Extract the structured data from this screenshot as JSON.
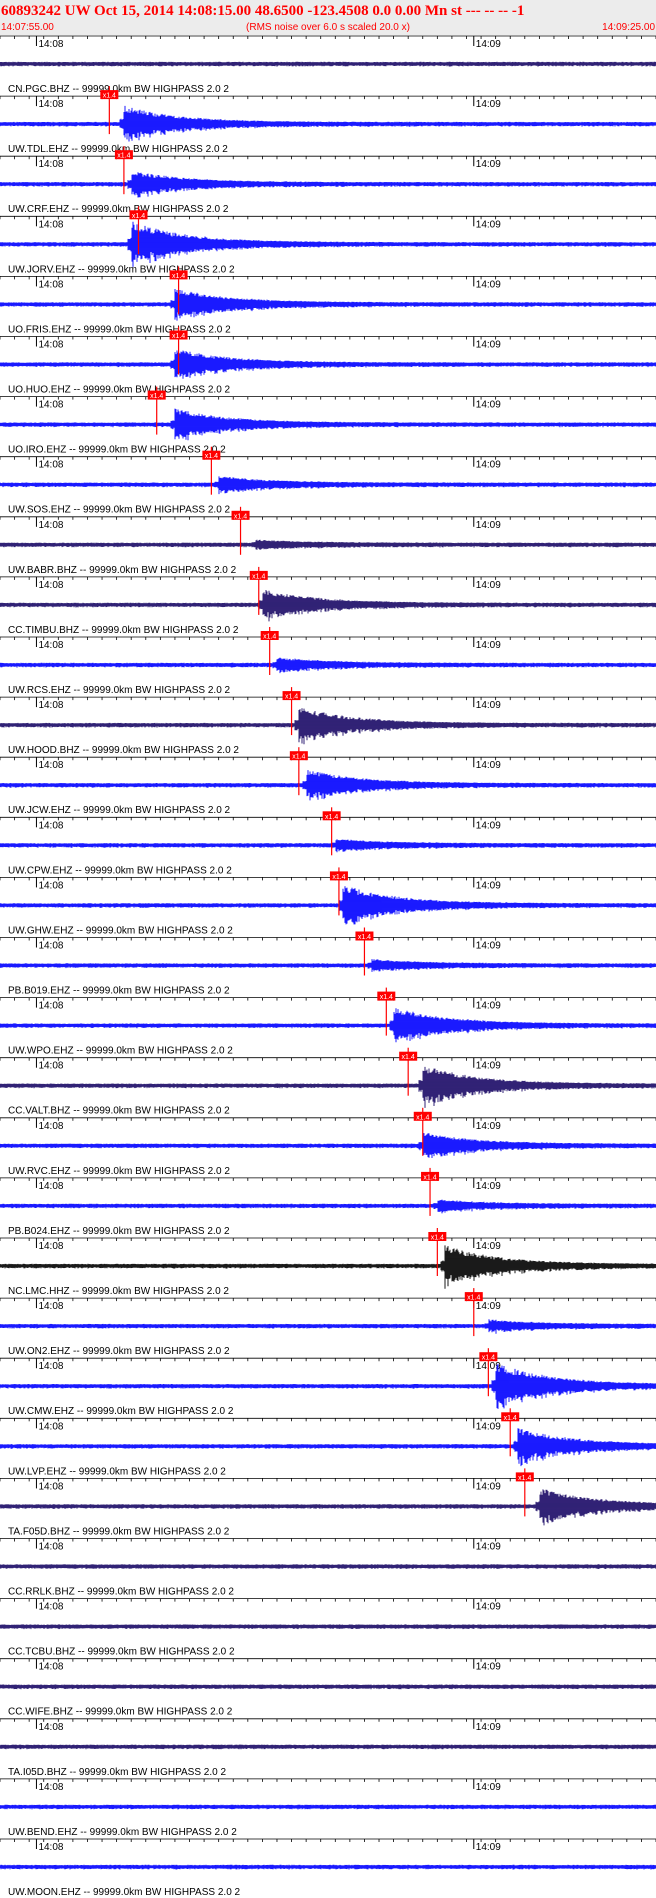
{
  "header": {
    "title": "60893242 UW Oct 15, 2014 14:08:15.00   48.6500 -123.4508  0.0 0.00 Mn st --- -- --   -1",
    "start_time": "14:07:55.00",
    "end_time": "14:09:25.00",
    "noise_note": "(RMS noise over 6.0 s scaled 20.0 x)"
  },
  "colors": {
    "title": "#ff0000",
    "trace_blue": "#0000ff",
    "trace_navy": "#1a0a66",
    "trace_black": "#000000",
    "pick": "#ff0000",
    "axis": "#000000"
  },
  "chart_data": {
    "type": "line",
    "x_unit": "time (UTC)",
    "x_range": [
      "14:07:55.00",
      "14:09:25.00"
    ],
    "minute_ticks": [
      "14:08",
      "14:09"
    ],
    "pick_label": "x1.4",
    "channels": [
      {
        "label": "CN.PGC.BHZ -- 99999.0km BW  HIGHPASS  2.0  2",
        "color": "navy",
        "pick": null,
        "event_time": null,
        "amplitude": 0.2
      },
      {
        "label": "UW.TDL.EHZ -- 99999.0km BW  HIGHPASS  2.0  2",
        "color": "blue",
        "pick": "14:08:10.0",
        "event_time": "14:08:12",
        "amplitude": 0.7
      },
      {
        "label": "UW.CRF.EHZ -- 99999.0km BW  HIGHPASS  2.0  2",
        "color": "blue",
        "pick": "14:08:12.0",
        "event_time": "14:08:13",
        "amplitude": 0.5
      },
      {
        "label": "UW.JORV.EHZ -- 99999.0km BW  HIGHPASS  2.0  2",
        "color": "blue",
        "pick": "14:08:14.0",
        "event_time": "14:08:13",
        "amplitude": 0.9
      },
      {
        "label": "UO.FRIS.EHZ -- 99999.0km BW  HIGHPASS  2.0  2",
        "color": "blue",
        "pick": "14:08:19.5",
        "event_time": "14:08:19",
        "amplitude": 0.6
      },
      {
        "label": "UO.HUO.EHZ -- 99999.0km BW  HIGHPASS  2.0  2",
        "color": "blue",
        "pick": "14:08:19.5",
        "event_time": "14:08:19",
        "amplitude": 0.6
      },
      {
        "label": "UO.IRO.EHZ -- 99999.0km BW  HIGHPASS  2.0  2",
        "color": "blue",
        "pick": "14:08:16.5",
        "event_time": "14:08:19",
        "amplitude": 0.6
      },
      {
        "label": "UW.SOS.EHZ -- 99999.0km BW  HIGHPASS  2.0  2",
        "color": "blue",
        "pick": "14:08:24.0",
        "event_time": "14:08:25",
        "amplitude": 0.3
      },
      {
        "label": "UW.BABR.BHZ -- 99999.0km BW  HIGHPASS  2.0  2",
        "color": "navy",
        "pick": "14:08:28.0",
        "event_time": "14:08:30",
        "amplitude": 0.15
      },
      {
        "label": "CC.TIMBU.BHZ -- 99999.0km BW  HIGHPASS  2.0  2",
        "color": "navy",
        "pick": "14:08:30.5",
        "event_time": "14:08:31",
        "amplitude": 0.6
      },
      {
        "label": "UW.RCS.EHZ -- 99999.0km BW  HIGHPASS  2.0  2",
        "color": "blue",
        "pick": "14:08:32.0",
        "event_time": "14:08:33",
        "amplitude": 0.25
      },
      {
        "label": "UW.HOOD.BHZ -- 99999.0km BW  HIGHPASS  2.0  2",
        "color": "navy",
        "pick": "14:08:35.0",
        "event_time": "14:08:36",
        "amplitude": 0.7
      },
      {
        "label": "UW.JCW.EHZ -- 99999.0km BW  HIGHPASS  2.0  2",
        "color": "blue",
        "pick": "14:08:36.0",
        "event_time": "14:08:37",
        "amplitude": 0.6
      },
      {
        "label": "UW.CPW.EHZ -- 99999.0km BW  HIGHPASS  2.0  2",
        "color": "blue",
        "pick": "14:08:40.5",
        "event_time": "14:08:41",
        "amplitude": 0.2
      },
      {
        "label": "UW.GHW.EHZ -- 99999.0km BW  HIGHPASS  2.0  2",
        "color": "blue",
        "pick": "14:08:41.5",
        "event_time": "14:08:42",
        "amplitude": 0.8
      },
      {
        "label": "PB.B019.EHZ -- 99999.0km BW  HIGHPASS  2.0  2",
        "color": "blue",
        "pick": "14:08:45.0",
        "event_time": "14:08:46",
        "amplitude": 0.2
      },
      {
        "label": "UW.WPO.EHZ -- 99999.0km BW  HIGHPASS  2.0  2",
        "color": "blue",
        "pick": "14:08:48.0",
        "event_time": "14:08:49",
        "amplitude": 0.7
      },
      {
        "label": "CC.VALT.BHZ -- 99999.0km BW  HIGHPASS  2.0  2",
        "color": "navy",
        "pick": "14:08:51.0",
        "event_time": "14:08:53",
        "amplitude": 0.8
      },
      {
        "label": "UW.RVC.EHZ -- 99999.0km BW  HIGHPASS  2.0  2",
        "color": "blue",
        "pick": "14:08:53.0",
        "event_time": "14:08:53",
        "amplitude": 0.5
      },
      {
        "label": "PB.B024.EHZ -- 99999.0km BW  HIGHPASS  2.0  2",
        "color": "blue",
        "pick": "14:08:54.0",
        "event_time": "14:08:55",
        "amplitude": 0.2
      },
      {
        "label": "NC.LMC.HHZ -- 99999.0km BW  HIGHPASS  2.0  2",
        "color": "black",
        "pick": "14:08:55.0",
        "event_time": "14:08:56",
        "amplitude": 0.8
      },
      {
        "label": "UW.ON2.EHZ -- 99999.0km BW  HIGHPASS  2.0  2",
        "color": "blue",
        "pick": "14:09:00.0",
        "event_time": "14:09:02",
        "amplitude": 0.2
      },
      {
        "label": "UW.CMW.EHZ -- 99999.0km BW  HIGHPASS  2.0  2",
        "color": "blue",
        "pick": "14:09:02.0",
        "event_time": "14:09:03",
        "amplitude": 0.9
      },
      {
        "label": "UW.LVP.EHZ -- 99999.0km BW  HIGHPASS  2.0  2",
        "color": "blue",
        "pick": "14:09:05.0",
        "event_time": "14:09:06",
        "amplitude": 0.7
      },
      {
        "label": "TA.F05D.BHZ -- 99999.0km BW  HIGHPASS  2.0  2",
        "color": "navy",
        "pick": "14:09:07.0",
        "event_time": "14:09:09",
        "amplitude": 0.7
      },
      {
        "label": "CC.RRLK.BHZ -- 99999.0km BW  HIGHPASS  2.0  2",
        "color": "navy",
        "pick": null,
        "event_time": null,
        "amplitude": 0.15
      },
      {
        "label": "CC.TCBU.BHZ -- 99999.0km BW  HIGHPASS  2.0  2",
        "color": "navy",
        "pick": null,
        "event_time": null,
        "amplitude": 0.15
      },
      {
        "label": "CC.WIFE.BHZ -- 99999.0km BW  HIGHPASS  2.0  2",
        "color": "navy",
        "pick": null,
        "event_time": null,
        "amplitude": 0.15
      },
      {
        "label": "TA.I05D.BHZ -- 99999.0km BW  HIGHPASS  2.0  2",
        "color": "navy",
        "pick": null,
        "event_time": null,
        "amplitude": 0.2
      },
      {
        "label": "UW.BEND.EHZ -- 99999.0km BW  HIGHPASS  2.0  2",
        "color": "blue",
        "pick": null,
        "event_time": null,
        "amplitude": 0.25
      },
      {
        "label": "UW.MOON.EHZ -- 99999.0km BW  HIGHPASS  2.0  2",
        "color": "blue",
        "pick": null,
        "event_time": null,
        "amplitude": 0.3
      }
    ]
  }
}
